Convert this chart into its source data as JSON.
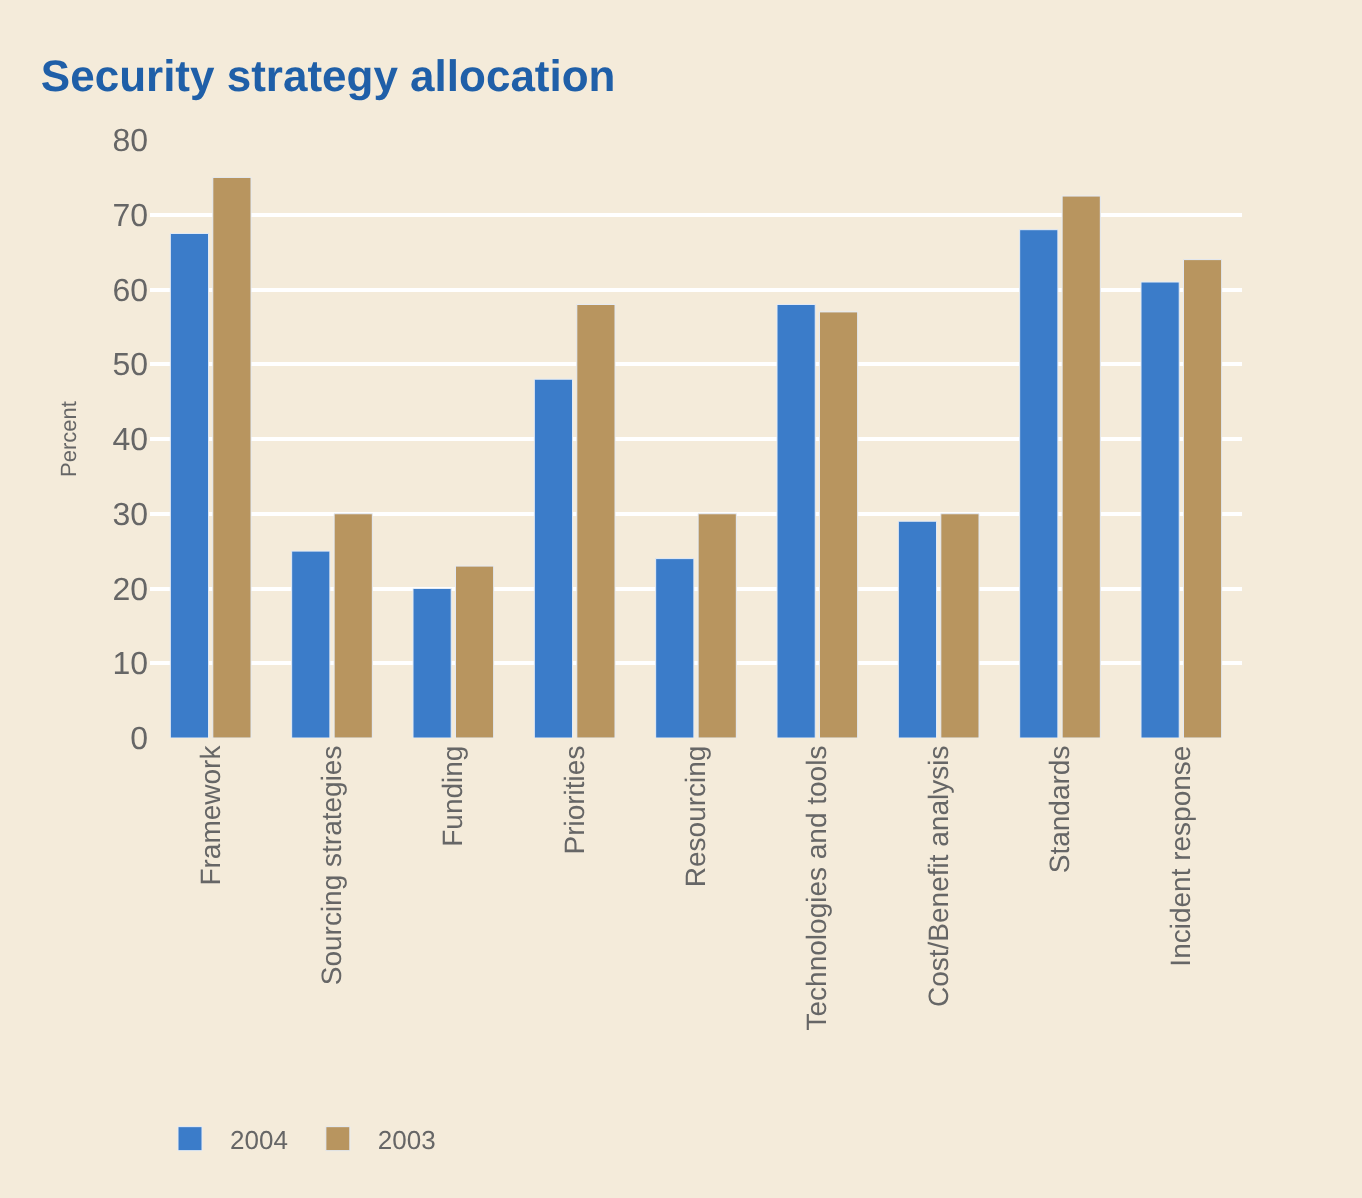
{
  "chart_data": {
    "type": "bar",
    "title": "Security strategy allocation",
    "ylabel": "Percent",
    "categories": [
      "Framework",
      "Sourcing strategies",
      "Funding",
      "Priorities",
      "Resourcing",
      "Technologies and tools",
      "Cost/Benefit analysis",
      "Standards",
      "Incident response"
    ],
    "series": [
      {
        "name": "2004",
        "color": "#3b7cc9",
        "values": [
          67.5,
          25,
          20,
          48,
          24,
          58,
          29,
          68,
          61
        ]
      },
      {
        "name": "2003",
        "color": "#b8955f",
        "values": [
          75,
          30,
          23,
          58,
          30,
          57,
          30,
          72.5,
          64
        ]
      }
    ],
    "ylim": [
      0,
      80
    ],
    "yticks": [
      0,
      10,
      20,
      30,
      40,
      50,
      60,
      70,
      80
    ],
    "grid": "y",
    "legend": "bottom left"
  }
}
